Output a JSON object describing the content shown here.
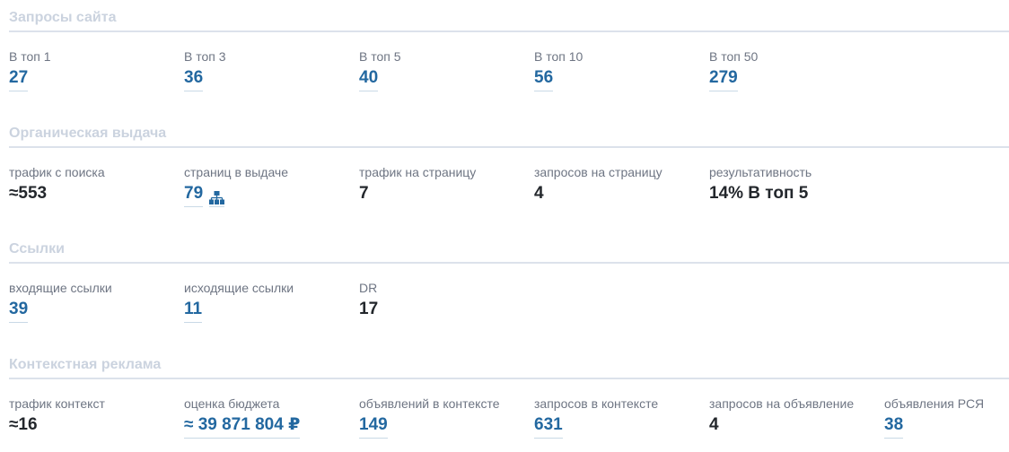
{
  "colors": {
    "link_blue": "#2368a0",
    "title_gray": "#cbd3df",
    "label_gray": "#6e7583",
    "value_black": "#23272c",
    "underline": "#c9d9e6",
    "divider": "#dce2eb"
  },
  "icons": {
    "sitemap": "sitemap-icon"
  },
  "sections": [
    {
      "title": "Запросы сайта",
      "metrics": [
        {
          "label": "В топ 1",
          "value": "27",
          "link": true
        },
        {
          "label": "В топ 3",
          "value": "36",
          "link": true
        },
        {
          "label": "В топ 5",
          "value": "40",
          "link": true
        },
        {
          "label": "В топ 10",
          "value": "56",
          "link": true
        },
        {
          "label": "В топ 50",
          "value": "279",
          "link": true
        }
      ]
    },
    {
      "title": "Органическая выдача",
      "metrics": [
        {
          "label": "трафик с поиска",
          "value": "≈553",
          "link": false
        },
        {
          "label": "страниц в выдаче",
          "value": "79",
          "link": true,
          "icon": "sitemap"
        },
        {
          "label": "трафик на страницу",
          "value": "7",
          "link": false
        },
        {
          "label": "запросов на страницу",
          "value": "4",
          "link": false
        },
        {
          "label": "результативность",
          "value": "14% В топ 5",
          "link": false
        }
      ]
    },
    {
      "title": "Ссылки",
      "metrics": [
        {
          "label": "входящие ссылки",
          "value": "39",
          "link": true
        },
        {
          "label": "исходящие ссылки",
          "value": "11",
          "link": true
        },
        {
          "label": "DR",
          "value": "17",
          "link": false
        }
      ]
    },
    {
      "title": "Контекстная реклама",
      "metrics": [
        {
          "label": "трафик контекст",
          "value": "≈16",
          "link": false
        },
        {
          "label": "оценка бюджета",
          "value": "≈ 39 871 804 ₽",
          "link": true
        },
        {
          "label": "объявлений в контексте",
          "value": "149",
          "link": true
        },
        {
          "label": "запросов в контексте",
          "value": "631",
          "link": true
        },
        {
          "label": "запросов на объявление",
          "value": "4",
          "link": false
        },
        {
          "label": "объявления РСЯ",
          "value": "38",
          "link": true
        }
      ]
    }
  ]
}
